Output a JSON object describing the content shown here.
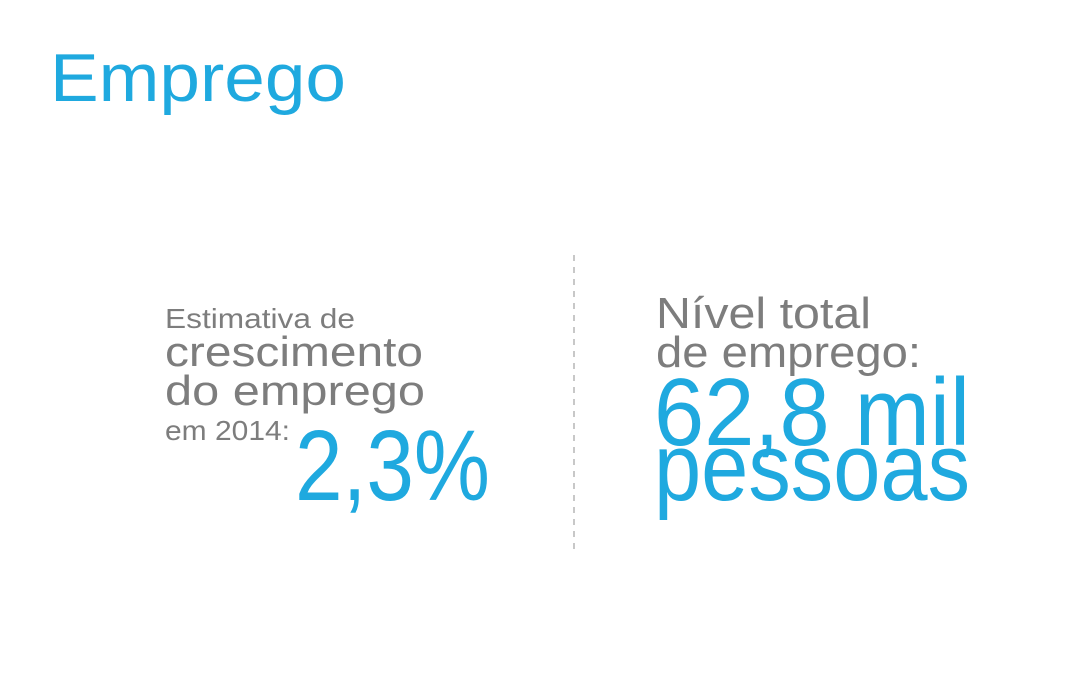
{
  "title": "Emprego",
  "left": {
    "lines": [
      "Estimativa de",
      "crescimento",
      "do emprego",
      "em 2014:"
    ],
    "value": "2,3%"
  },
  "right": {
    "lines": [
      "Nível total",
      "de emprego:"
    ],
    "value_lines": [
      "62,8 mil",
      "pessoas"
    ]
  }
}
